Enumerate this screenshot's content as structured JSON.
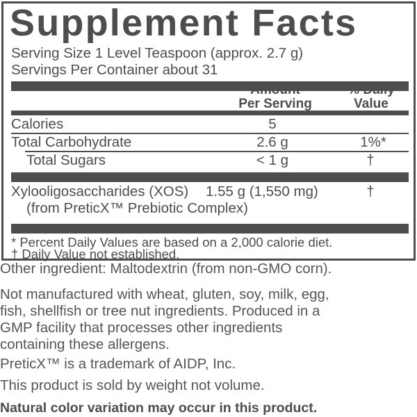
{
  "title": "Supplement Facts",
  "serving_size": "Serving Size 1 Level Teaspoon (approx. 2.7 g)",
  "servings_per_container": "Servings Per Container about 31",
  "header": {
    "amount_line1": "Amount",
    "amount_line2": "Per Serving",
    "dv_line1": "% Daily",
    "dv_line2": "Value"
  },
  "rows": [
    {
      "name": "Calories",
      "amount": "5",
      "dv": ""
    },
    {
      "name": "Total Carbohydrate",
      "amount": "2.6 g",
      "dv": "1%*"
    },
    {
      "name": "Total Sugars",
      "amount": "< 1 g",
      "dv": "†"
    },
    {
      "name": "Xylooligosaccharides (XOS)",
      "amount": "1.55 g (1,550 mg)",
      "dv": "†",
      "sub": "(from PreticX™ Prebiotic Complex)"
    }
  ],
  "footnotes": [
    "* Percent Daily Values are based on a 2,000 calorie diet.",
    "† Daily Value not established."
  ],
  "below": {
    "other": "Other ingredient: Maltodextrin (from non-GMO corn).",
    "allergen": [
      "Not manufactured with wheat, gluten, soy, milk, egg,",
      "fish, shellfish or tree nut ingredients. Produced in a",
      "GMP facility that processes other ingredients",
      "containing these allergens."
    ],
    "trademark": "PreticX™ is a trademark of AIDP, Inc.",
    "weight": "This product is sold by weight not volume.",
    "color_note": "Natural color variation may occur in this product."
  },
  "colors": {
    "ink": "#4d4d4f"
  }
}
